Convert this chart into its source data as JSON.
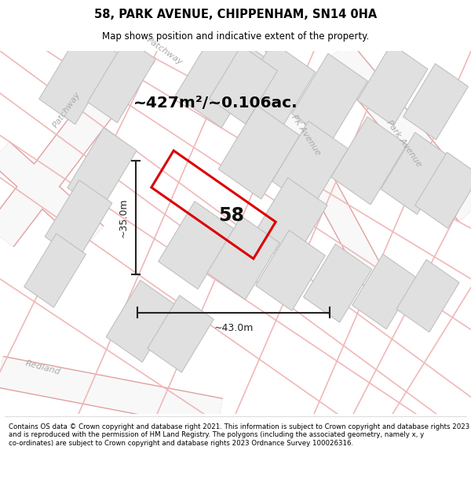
{
  "title": "58, PARK AVENUE, CHIPPENHAM, SN14 0HA",
  "subtitle": "Map shows position and indicative extent of the property.",
  "area_text": "~427m²/~0.106ac.",
  "label_58": "58",
  "dim_height": "~35.0m",
  "dim_width": "~43.0m",
  "footer": "Contains OS data © Crown copyright and database right 2021. This information is subject to Crown copyright and database rights 2023 and is reproduced with the permission of HM Land Registry. The polygons (including the associated geometry, namely x, y co-ordinates) are subject to Crown copyright and database rights 2023 Ordnance Survey 100026316.",
  "map_bg": "#f8f8f8",
  "building_fill": "#e0e0e0",
  "building_edge": "#c0c0c0",
  "road_outline_color": "#e8a0a0",
  "road_fill_color": "#ffffff",
  "red_poly_color": "#dd0000",
  "dim_color": "#222222",
  "title_color": "#000000",
  "label_color": "#888888",
  "area_text_color": "#000000"
}
